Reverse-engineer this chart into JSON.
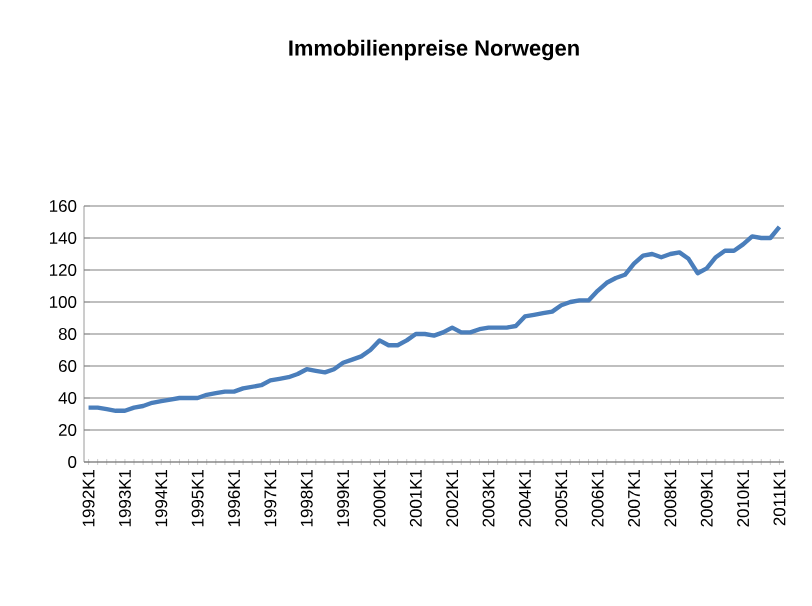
{
  "chart_data": {
    "type": "line",
    "title": "Immobilienpreise Norwegen",
    "categories": [
      "1992K1",
      null,
      null,
      null,
      "1993K1",
      null,
      null,
      null,
      "1994K1",
      null,
      null,
      null,
      "1995K1",
      null,
      null,
      null,
      "1996K1",
      null,
      null,
      null,
      "1997K1",
      null,
      null,
      null,
      "1998K1",
      null,
      null,
      null,
      "1999K1",
      null,
      null,
      null,
      "2000K1",
      null,
      null,
      null,
      "2001K1",
      null,
      null,
      null,
      "2002K1",
      null,
      null,
      null,
      "2003K1",
      null,
      null,
      null,
      "2004K1",
      null,
      null,
      null,
      "2005K1",
      null,
      null,
      null,
      "2006K1",
      null,
      null,
      null,
      "2007K1",
      null,
      null,
      null,
      "2008K1",
      null,
      null,
      null,
      "2009K1",
      null,
      null,
      null,
      "2010K1",
      null,
      null,
      null,
      "2011K1"
    ],
    "values": [
      34,
      34,
      33,
      32,
      32,
      34,
      35,
      37,
      38,
      39,
      40,
      40,
      40,
      42,
      43,
      44,
      44,
      46,
      47,
      48,
      51,
      52,
      53,
      55,
      58,
      57,
      56,
      58,
      62,
      64,
      66,
      70,
      76,
      73,
      73,
      76,
      80,
      80,
      79,
      81,
      84,
      81,
      81,
      83,
      84,
      84,
      84,
      85,
      91,
      92,
      93,
      94,
      98,
      100,
      101,
      101,
      107,
      112,
      115,
      117,
      124,
      129,
      130,
      128,
      130,
      131,
      127,
      118,
      121,
      128,
      132,
      132,
      136,
      141,
      140,
      140,
      147
    ],
    "color": "#4a7ebb",
    "ylim": [
      0,
      160
    ],
    "yticks": [
      0,
      20,
      40,
      60,
      80,
      100,
      120,
      140,
      160
    ],
    "grid": "y",
    "marker": "none",
    "line_style": "solid"
  }
}
